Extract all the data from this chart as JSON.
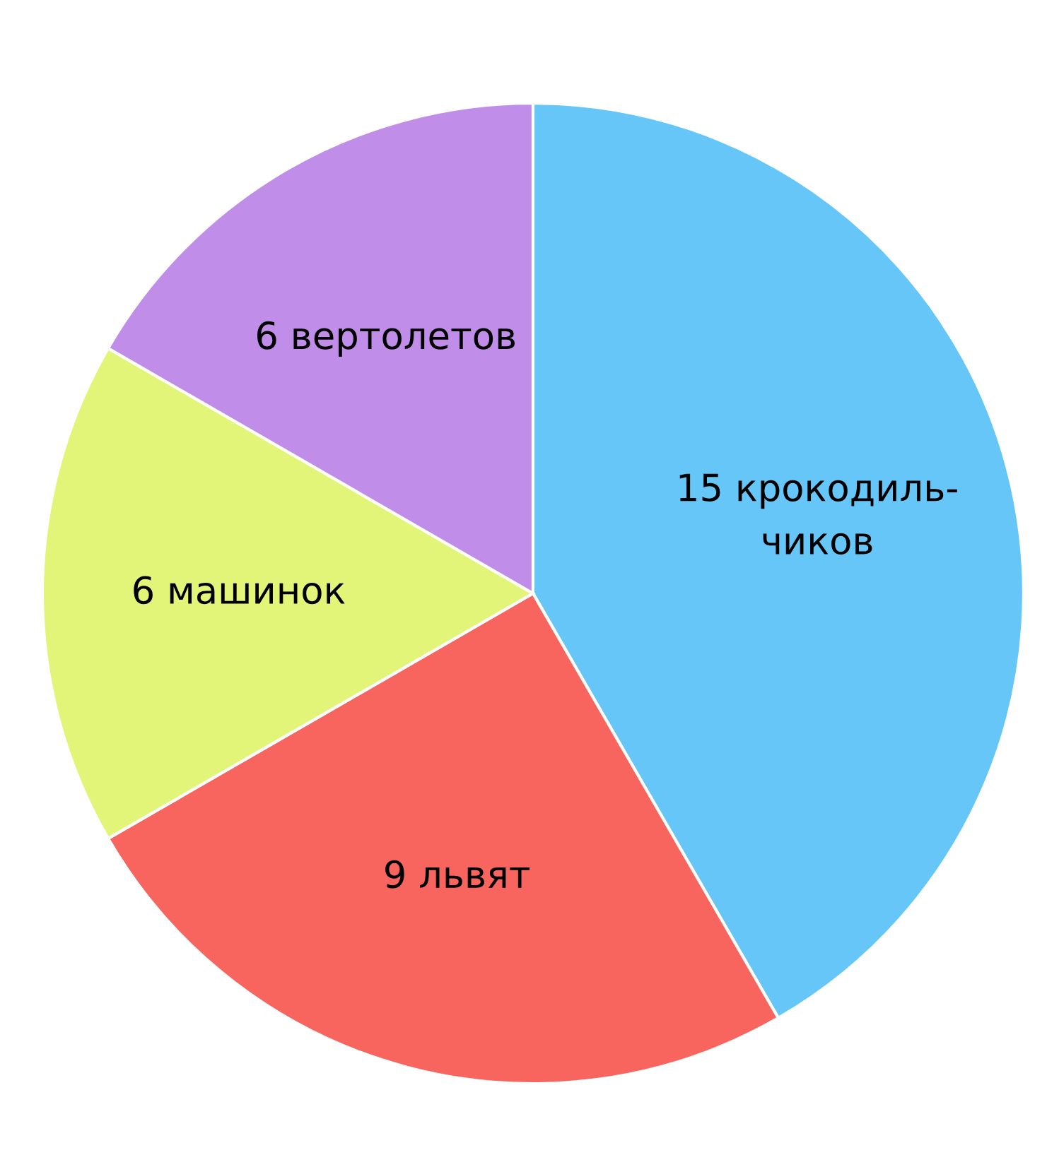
{
  "chart_data": {
    "type": "pie",
    "categories": [
      "15 крокодиль-\nчиков",
      "9 львят",
      "6 машинок",
      "6 вертолетов"
    ],
    "values": [
      15,
      9,
      6,
      6
    ],
    "colors": [
      "#66c6f8",
      "#f8655e",
      "#e2f578",
      "#c08ee8"
    ]
  }
}
